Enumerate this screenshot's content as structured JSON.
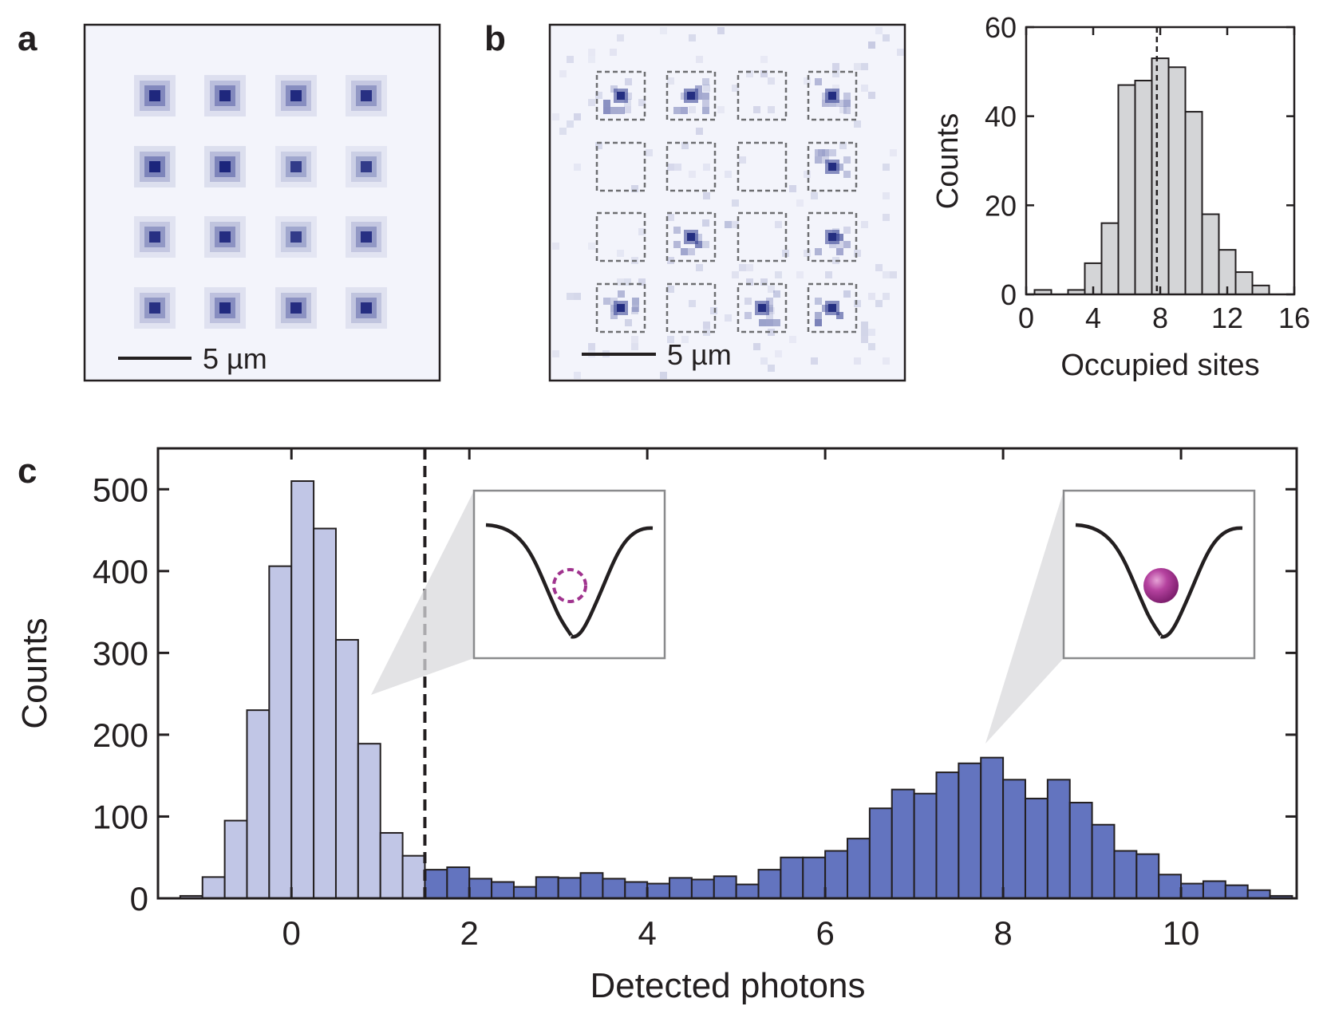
{
  "panel_labels": {
    "a": "a",
    "b": "b",
    "c": "c"
  },
  "colors": {
    "dot": "#2e3a8f",
    "bg_image": "#f3f4fb",
    "hist_b_fill": "#d4d5d7",
    "light_bar": "#c1c6e6",
    "dark_bar": "#6374bf",
    "atom": "#a0338e",
    "axis": "#231f20"
  },
  "chart_data": [
    {
      "id": "a",
      "type": "heatmap",
      "title": "",
      "description_grid": [
        4,
        4
      ],
      "intensity": [
        [
          0.9,
          0.9,
          0.85,
          0.75
        ],
        [
          0.95,
          0.95,
          0.6,
          0.6
        ],
        [
          0.75,
          0.8,
          0.6,
          0.75
        ],
        [
          0.75,
          0.85,
          0.8,
          0.8
        ]
      ],
      "scalebar_label": "5 µm"
    },
    {
      "id": "b_image",
      "type": "heatmap",
      "grid": [
        4,
        4
      ],
      "occupied": [
        [
          1,
          1,
          0,
          1
        ],
        [
          0,
          0,
          0,
          1
        ],
        [
          0,
          1,
          0,
          1
        ],
        [
          1,
          0,
          1,
          1
        ]
      ],
      "scalebar_label": "5 µm"
    },
    {
      "id": "b_hist",
      "type": "bar",
      "bin_width": 1,
      "x": [
        1,
        2,
        3,
        4,
        5,
        6,
        7,
        8,
        9,
        10,
        11,
        12,
        13,
        14
      ],
      "values": [
        1,
        0,
        1,
        7,
        16,
        47,
        48,
        53,
        51,
        41,
        18,
        10,
        5,
        2
      ],
      "mean_line": 7.8,
      "xlim": [
        0,
        16
      ],
      "ylim": [
        0,
        60
      ],
      "xticks": [
        0,
        4,
        8,
        12,
        16
      ],
      "yticks": [
        0,
        20,
        40,
        60
      ],
      "xlabel": "Occupied sites",
      "ylabel": "Counts"
    },
    {
      "id": "c",
      "type": "bar",
      "bin_width": 0.25,
      "x_start": -1.25,
      "values": [
        3,
        26,
        95,
        230,
        406,
        510,
        452,
        316,
        189,
        80,
        52,
        35,
        38,
        24,
        20,
        14,
        26,
        25,
        31,
        24,
        20,
        18,
        25,
        23,
        27,
        17,
        35,
        50,
        50,
        58,
        73,
        110,
        133,
        128,
        154,
        165,
        172,
        145,
        122,
        145,
        117,
        90,
        58,
        54,
        29,
        18,
        21,
        16,
        10,
        3
      ],
      "threshold": 1.5,
      "xlim": [
        -1.5,
        11.3
      ],
      "ylim": [
        0,
        550
      ],
      "xticks": [
        0,
        2,
        4,
        6,
        8,
        10
      ],
      "yticks": [
        0,
        100,
        200,
        300,
        400,
        500
      ],
      "xlabel": "Detected photons",
      "ylabel": "Counts",
      "insets": [
        "empty-site",
        "occupied-site"
      ]
    }
  ]
}
